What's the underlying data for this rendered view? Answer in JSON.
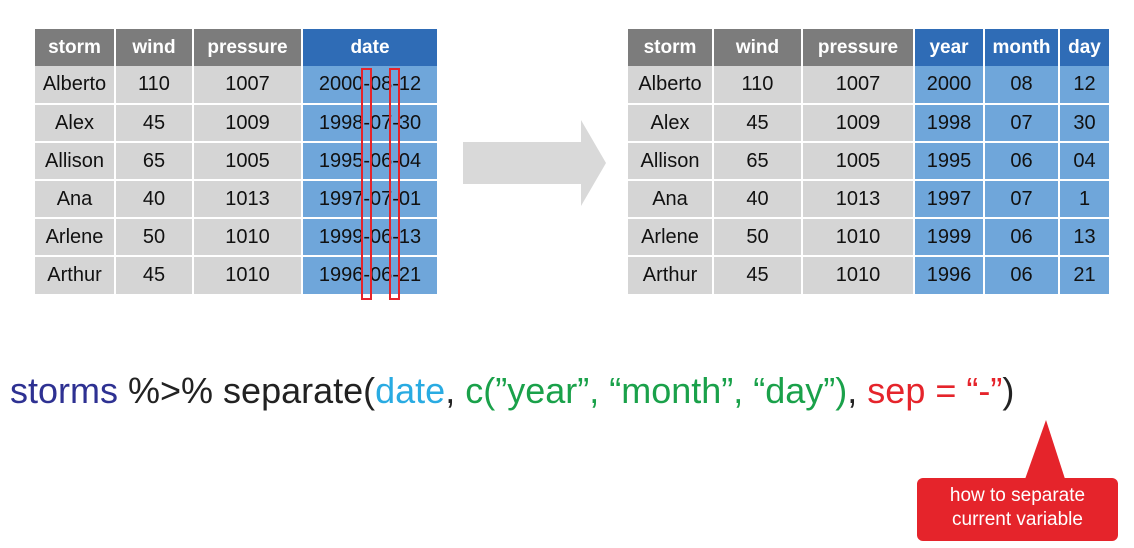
{
  "left_table": {
    "columns": [
      "storm",
      "wind",
      "pressure",
      "date"
    ],
    "rows": [
      [
        "Alberto",
        "110",
        "1007",
        "2000-08-12"
      ],
      [
        "Alex",
        "45",
        "1009",
        "1998-07-30"
      ],
      [
        "Allison",
        "65",
        "1005",
        "1995-06-04"
      ],
      [
        "Ana",
        "40",
        "1013",
        "1997-07-01"
      ],
      [
        "Arlene",
        "50",
        "1010",
        "1999-06-13"
      ],
      [
        "Arthur",
        "45",
        "1010",
        "1996-06-21"
      ]
    ]
  },
  "right_table": {
    "columns": [
      "storm",
      "wind",
      "pressure",
      "year",
      "month",
      "day"
    ],
    "rows": [
      [
        "Alberto",
        "110",
        "1007",
        "2000",
        "08",
        "12"
      ],
      [
        "Alex",
        "45",
        "1009",
        "1998",
        "07",
        "30"
      ],
      [
        "Allison",
        "65",
        "1005",
        "1995",
        "06",
        "04"
      ],
      [
        "Ana",
        "40",
        "1013",
        "1997",
        "07",
        "1"
      ],
      [
        "Arlene",
        "50",
        "1010",
        "1999",
        "06",
        "13"
      ],
      [
        "Arthur",
        "45",
        "1010",
        "1996",
        "06",
        "21"
      ]
    ]
  },
  "code": {
    "part_data": "storms",
    "part_pipe": " %>% separate(",
    "part_col": "date",
    "part_comma1": ", ",
    "part_into": "c(”year”, “month”, “day”)",
    "part_comma2": ", ",
    "part_sep": "sep = “-”",
    "part_close": ")"
  },
  "callout": {
    "line1": "how to separate",
    "line2": "current variable"
  },
  "colors": {
    "header_gray": "#7c7c7c",
    "header_blue": "#2f6cb6",
    "cell_gray": "#d5d5d5",
    "cell_blue": "#6fa6da",
    "arrow_gray": "#d9d9d9",
    "highlight_red": "#e5242b",
    "fn_navy": "#2e3192",
    "var_cyan": "#29abe2",
    "new_green": "#1aa14a"
  }
}
